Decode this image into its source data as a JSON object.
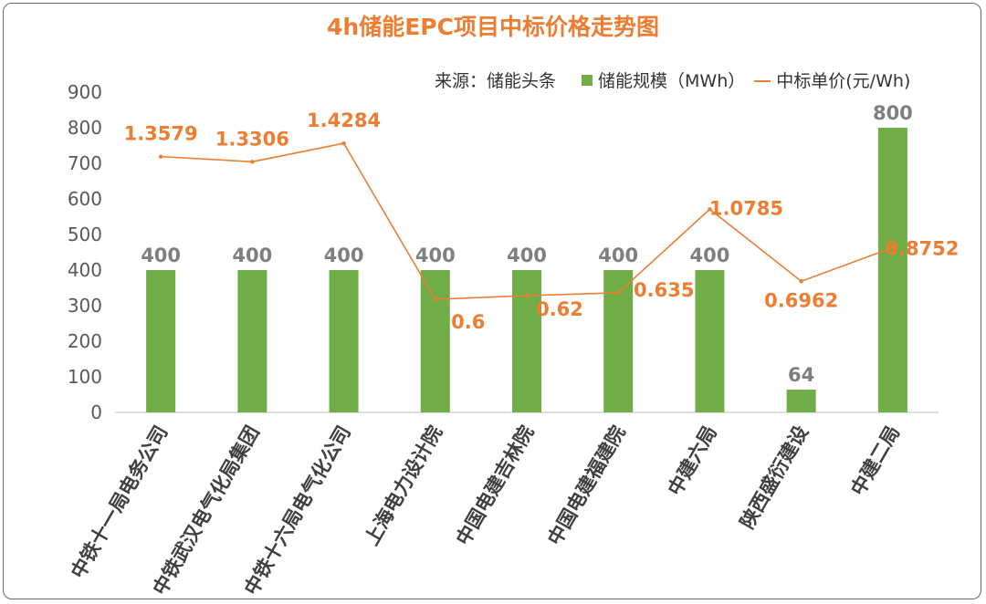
{
  "chart_data": {
    "type": "bar+line",
    "title": "4h储能EPC项目中标价格走势图",
    "source": "来源：储能头条",
    "categories": [
      "中铁十一局电务公司",
      "中铁武汉电气化局集团",
      "中铁十六局电气化公司",
      "上海电力设计院",
      "中国电建吉林院",
      "中国电建福建院",
      "中建六局",
      "陕西盛衍建设",
      "中建二局"
    ],
    "series": [
      {
        "name": "储能规模（MWh）",
        "type": "bar",
        "color": "#70AD47",
        "values": [
          400,
          400,
          400,
          400,
          400,
          400,
          400,
          64,
          800
        ],
        "labels": [
          "400",
          "400",
          "400",
          "400",
          "400",
          "400",
          "400",
          "64",
          "800"
        ]
      },
      {
        "name": "中标单价(元/Wh)",
        "type": "line",
        "color": "#ED7D31",
        "values": [
          1.3579,
          1.3306,
          1.4284,
          0.6,
          0.62,
          0.635,
          1.0785,
          0.6962,
          0.8752
        ],
        "labels": [
          "1.3579",
          "1.3306",
          "1.4284",
          "0.6",
          "0.62",
          "0.635",
          "1.0785",
          "0.6962",
          "0.8752"
        ]
      }
    ],
    "yticks": [
      "0",
      "100",
      "200",
      "300",
      "400",
      "500",
      "600",
      "700",
      "800",
      "900"
    ],
    "ylim": [
      0,
      900
    ],
    "line_scale_ylim": [
      0,
      1.7
    ],
    "grid": false,
    "legend_position": "top-right"
  }
}
